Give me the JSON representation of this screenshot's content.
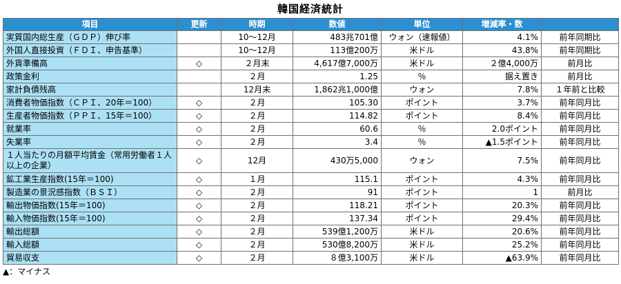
{
  "title": "韓国経済統計",
  "headers": [
    "項目",
    "更新",
    "時期",
    "数値",
    "単位",
    "増減率・数",
    ""
  ],
  "rows": [
    {
      "item": "実質国内総生産（ＧＤＰ）伸び率",
      "update": "",
      "period": "10〜12月",
      "value": "483兆701億",
      "unit": "ウォン（速報値）",
      "change": "4.1%",
      "compare": "前年同期比"
    },
    {
      "item": "外国人直接投資（ＦＤＩ、申告基準）",
      "update": "",
      "period": "10〜12月",
      "value": "113億200万",
      "unit": "米ドル",
      "change": "43.8%",
      "compare": "前年同期比"
    },
    {
      "item": "外貨準備高",
      "update": "◇",
      "period": "２月末",
      "value": "4,617億7,000万",
      "unit": "米ドル",
      "change": "２億4,000万",
      "compare": "前月比"
    },
    {
      "item": "政策金利",
      "update": "",
      "period": "２月",
      "value": "1.25",
      "unit": "％",
      "change": "据え置き",
      "compare": "前月比"
    },
    {
      "item": "家計負債残高",
      "update": "",
      "period": "12月末",
      "value": "1,862兆1,000億",
      "unit": "ウォン",
      "change": "7.8%",
      "compare": "１年前と比較"
    },
    {
      "item": "消費者物価指数（ＣＰＩ、20年＝100）",
      "update": "◇",
      "period": "２月",
      "value": "105.30",
      "unit": "ポイント",
      "change": "3.7%",
      "compare": "前年同月比"
    },
    {
      "item": "生産者物価指数（ＰＰＩ、15年＝100）",
      "update": "◇",
      "period": "２月",
      "value": "114.82",
      "unit": "ポイント",
      "change": "8.4%",
      "compare": "前年同月比"
    },
    {
      "item": "就業率",
      "update": "◇",
      "period": "２月",
      "value": "60.6",
      "unit": "％",
      "change": "2.0ポイント",
      "compare": "前年同月比"
    },
    {
      "item": "失業率",
      "update": "◇",
      "period": "２月",
      "value": "3.4",
      "unit": "％",
      "change": "▲1.5ポイント",
      "compare": "前年同月比"
    },
    {
      "item": "１人当たりの月額平均賃金（常用労働者１人以上の企業）",
      "update": "◇",
      "period": "12月",
      "value": "430万5,000",
      "unit": "ウォン",
      "change": "7.5%",
      "compare": "前年同月比",
      "tall": true
    },
    {
      "item": "鉱工業生産指数(15年＝100)",
      "update": "◇",
      "period": "１月",
      "value": "115.1",
      "unit": "ポイント",
      "change": "4.3%",
      "compare": "前年同月比"
    },
    {
      "item": "製造業の景況感指数（ＢＳＩ）",
      "update": "◇",
      "period": "２月",
      "value": "91",
      "unit": "ポイント",
      "change": "1",
      "compare": "前月比"
    },
    {
      "item": "輸出物価指数(15年＝100)",
      "update": "◇",
      "period": "２月",
      "value": "118.21",
      "unit": "ポイント",
      "change": "20.3%",
      "compare": "前年同月比"
    },
    {
      "item": "輸入物価指数(15年＝100)",
      "update": "◇",
      "period": "２月",
      "value": "137.34",
      "unit": "ポイント",
      "change": "29.4%",
      "compare": "前年同月比"
    },
    {
      "item": "輸出総額",
      "update": "◇",
      "period": "２月",
      "value": "539億1,200万",
      "unit": "米ドル",
      "change": "20.6%",
      "compare": "前年同月比"
    },
    {
      "item": "輸入総額",
      "update": "◇",
      "period": "２月",
      "value": "530億8,200万",
      "unit": "米ドル",
      "change": "25.2%",
      "compare": "前年同月比"
    },
    {
      "item": "貿易収支",
      "update": "◇",
      "period": "２月",
      "value": "８億3,100万",
      "unit": "米ドル",
      "change": "▲63.9%",
      "compare": "前年同月比"
    }
  ],
  "footnote": "▲：マイナス"
}
